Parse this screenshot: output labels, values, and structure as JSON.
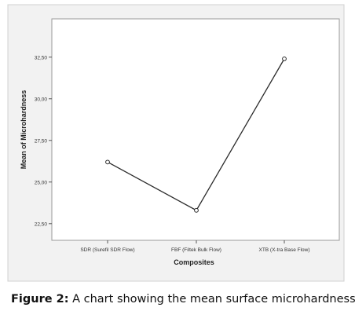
{
  "chart_data": {
    "type": "line",
    "categories": [
      "SDR (Surefil SDR Flow)",
      "FBF (Filtek Bulk Flow)",
      "XTB (X-tra Base Flow)"
    ],
    "series": [
      {
        "values": [
          26.2,
          23.3,
          32.4
        ]
      }
    ],
    "xlabel": "Composites",
    "ylabel": "Mean of Microhardness",
    "ylim": [
      21.5,
      34.8
    ],
    "yticks": [
      22.5,
      25.0,
      27.5,
      30.0,
      32.5
    ],
    "ytick_labels": [
      "22,50",
      "25,00",
      "27,50",
      "30,00",
      "32,50"
    ],
    "grid": false,
    "colors": {
      "plot_background": "#ffffff",
      "plot_border": "#9a9a9a",
      "frame_background": "#f2f2f2",
      "line": "#2b2b2b"
    }
  },
  "caption": {
    "lead": "Figure 2:",
    "text": " A chart showing the mean surface microhardness."
  }
}
